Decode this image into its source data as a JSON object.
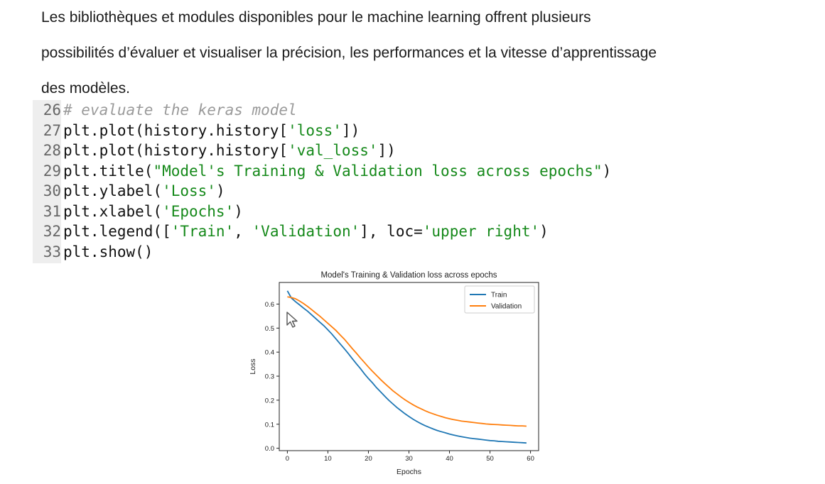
{
  "paragraph": {
    "lines": [
      "Les bibliothèques et modules disponibles pour le machine learning offrent plusieurs",
      "possibilités d’évaluer et visualiser la précision, les performances et la vitesse d’apprentissage",
      "des modèles."
    ]
  },
  "code": {
    "lines": [
      {
        "num": "26",
        "parts": [
          {
            "t": "# evaluate the keras model",
            "c": "cmt"
          }
        ]
      },
      {
        "num": "27",
        "parts": [
          {
            "t": "plt.plot(history.history[",
            "c": ""
          },
          {
            "t": "'loss'",
            "c": "str"
          },
          {
            "t": "])",
            "c": ""
          }
        ]
      },
      {
        "num": "28",
        "parts": [
          {
            "t": "plt.plot(history.history[",
            "c": ""
          },
          {
            "t": "'val_loss'",
            "c": "str"
          },
          {
            "t": "])",
            "c": ""
          }
        ]
      },
      {
        "num": "29",
        "parts": [
          {
            "t": "plt.title(",
            "c": ""
          },
          {
            "t": "\"Model's Training & Validation loss across epochs\"",
            "c": "str"
          },
          {
            "t": ")",
            "c": ""
          }
        ]
      },
      {
        "num": "30",
        "parts": [
          {
            "t": "plt.ylabel(",
            "c": ""
          },
          {
            "t": "'Loss'",
            "c": "str"
          },
          {
            "t": ")",
            "c": ""
          }
        ]
      },
      {
        "num": "31",
        "parts": [
          {
            "t": "plt.xlabel(",
            "c": ""
          },
          {
            "t": "'Epochs'",
            "c": "str"
          },
          {
            "t": ")",
            "c": ""
          }
        ]
      },
      {
        "num": "32",
        "parts": [
          {
            "t": "plt.legend([",
            "c": ""
          },
          {
            "t": "'Train'",
            "c": "str"
          },
          {
            "t": ", ",
            "c": ""
          },
          {
            "t": "'Validation'",
            "c": "str"
          },
          {
            "t": "], loc=",
            "c": ""
          },
          {
            "t": "'upper right'",
            "c": "str"
          },
          {
            "t": ")",
            "c": ""
          }
        ]
      },
      {
        "num": "33",
        "parts": [
          {
            "t": "plt.show()",
            "c": ""
          }
        ]
      }
    ],
    "colors": {
      "string": "#15891a",
      "comment": "#9a9a9a",
      "gutter": "#eeeeee"
    }
  },
  "chart_data": {
    "type": "line",
    "title": "Model's Training & Validation loss across epochs",
    "xlabel": "Epochs",
    "ylabel": "Loss",
    "xlim": [
      -2,
      62
    ],
    "ylim": [
      -0.01,
      0.69
    ],
    "xticks": [
      0,
      10,
      20,
      30,
      40,
      50,
      60
    ],
    "yticks": [
      0.0,
      0.1,
      0.2,
      0.3,
      0.4,
      0.5,
      0.6
    ],
    "grid": false,
    "legend_position": "upper right",
    "series": [
      {
        "name": "Train",
        "color": "#1f77b4",
        "x": [
          0,
          1,
          2,
          3,
          4,
          5,
          6,
          7,
          8,
          9,
          10,
          11,
          12,
          13,
          14,
          15,
          16,
          17,
          18,
          19,
          20,
          21,
          22,
          23,
          24,
          25,
          26,
          27,
          28,
          29,
          30,
          31,
          32,
          33,
          34,
          35,
          36,
          37,
          38,
          39,
          40,
          41,
          42,
          43,
          44,
          45,
          46,
          47,
          48,
          49,
          50,
          51,
          52,
          53,
          54,
          55,
          56,
          57,
          58,
          59
        ],
        "values": [
          0.655,
          0.625,
          0.61,
          0.597,
          0.583,
          0.57,
          0.555,
          0.54,
          0.525,
          0.51,
          0.493,
          0.475,
          0.455,
          0.435,
          0.415,
          0.395,
          0.373,
          0.352,
          0.332,
          0.31,
          0.29,
          0.272,
          0.252,
          0.235,
          0.217,
          0.2,
          0.185,
          0.17,
          0.157,
          0.144,
          0.132,
          0.121,
          0.111,
          0.102,
          0.094,
          0.087,
          0.08,
          0.074,
          0.069,
          0.064,
          0.059,
          0.055,
          0.051,
          0.048,
          0.045,
          0.042,
          0.04,
          0.038,
          0.036,
          0.034,
          0.032,
          0.031,
          0.029,
          0.028,
          0.027,
          0.026,
          0.025,
          0.024,
          0.023,
          0.022
        ]
      },
      {
        "name": "Validation",
        "color": "#ff7f0e",
        "x": [
          0,
          1,
          2,
          3,
          4,
          5,
          6,
          7,
          8,
          9,
          10,
          11,
          12,
          13,
          14,
          15,
          16,
          17,
          18,
          19,
          20,
          21,
          22,
          23,
          24,
          25,
          26,
          27,
          28,
          29,
          30,
          31,
          32,
          33,
          34,
          35,
          36,
          37,
          38,
          39,
          40,
          41,
          42,
          43,
          44,
          45,
          46,
          47,
          48,
          49,
          50,
          51,
          52,
          53,
          54,
          55,
          56,
          57,
          58,
          59
        ],
        "values": [
          0.63,
          0.627,
          0.622,
          0.613,
          0.602,
          0.59,
          0.577,
          0.563,
          0.55,
          0.535,
          0.52,
          0.505,
          0.49,
          0.472,
          0.455,
          0.435,
          0.415,
          0.396,
          0.376,
          0.357,
          0.338,
          0.32,
          0.303,
          0.286,
          0.27,
          0.255,
          0.24,
          0.227,
          0.214,
          0.202,
          0.191,
          0.181,
          0.172,
          0.164,
          0.156,
          0.149,
          0.143,
          0.137,
          0.132,
          0.127,
          0.123,
          0.119,
          0.116,
          0.113,
          0.111,
          0.109,
          0.107,
          0.105,
          0.103,
          0.101,
          0.1,
          0.099,
          0.098,
          0.097,
          0.096,
          0.095,
          0.094,
          0.093,
          0.093,
          0.092
        ]
      }
    ]
  }
}
